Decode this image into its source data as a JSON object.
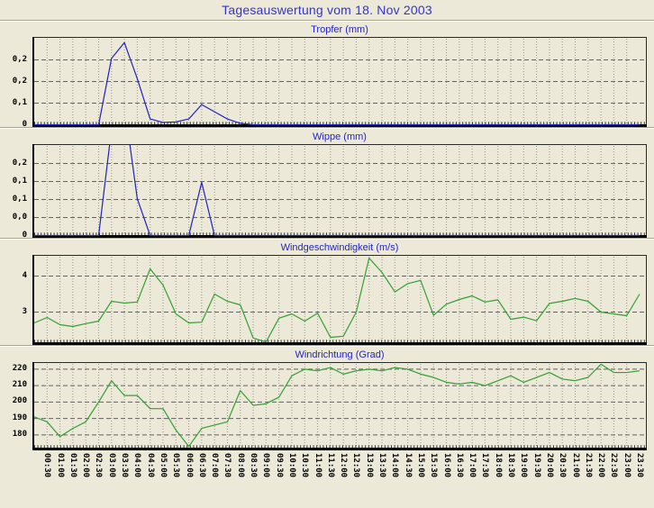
{
  "page": {
    "title": "Tagesauswertung vom 18. Nov 2003"
  },
  "colors": {
    "background": "#ece9d8",
    "page_title": "#3434cc",
    "chart_title": "#2323cc",
    "rain_line": "#2121bd",
    "wind_line": "#32a032",
    "grid_major": "#62625c",
    "grid_minor": "#9a968a",
    "axis": "#000000"
  },
  "x_labels": [
    "00:30",
    "01:00",
    "01:30",
    "02:00",
    "02:30",
    "03:00",
    "03:30",
    "04:00",
    "04:30",
    "05:00",
    "05:30",
    "06:00",
    "06:30",
    "07:00",
    "07:30",
    "08:00",
    "08:30",
    "09:00",
    "09:30",
    "10:00",
    "10:30",
    "11:00",
    "11:30",
    "12:00",
    "12:30",
    "13:00",
    "13:30",
    "14:00",
    "14:30",
    "15:00",
    "15:30",
    "16:00",
    "16:30",
    "17:00",
    "17:30",
    "18:00",
    "18:30",
    "19:00",
    "19:30",
    "20:00",
    "20:30",
    "21:00",
    "21:30",
    "22:00",
    "22:30",
    "23:00",
    "23:30"
  ],
  "chart_data": [
    {
      "type": "line",
      "id": "tropfer",
      "title": "Tropfer (mm)",
      "color": "#2121bd",
      "ymin": 0,
      "ymax": 0.3,
      "grid": true,
      "legend_position": "none",
      "yticks": [
        {
          "v": 0.225,
          "label": "0,2"
        },
        {
          "v": 0.15,
          "label": "0,2"
        },
        {
          "v": 0.075,
          "label": "0,1"
        },
        {
          "v": 0,
          "label": "0"
        }
      ],
      "x_start": "00:00",
      "x_step_minutes": 30,
      "values": [
        0,
        0,
        0,
        0,
        0,
        0,
        0.23,
        0.285,
        0.16,
        0.02,
        0.008,
        0.01,
        0.02,
        0.07,
        0.045,
        0.02,
        0.005,
        0,
        0,
        0,
        0,
        0,
        0,
        0,
        0,
        0,
        0,
        0,
        0,
        0,
        0,
        0,
        0,
        0,
        0,
        0,
        0,
        0,
        0,
        0,
        0,
        0,
        0,
        0,
        0,
        0,
        0,
        0
      ]
    },
    {
      "type": "line",
      "id": "wippe",
      "title": "Wippe (mm)",
      "color": "#2121bd",
      "ymin": 0,
      "ymax": 0.22,
      "grid": true,
      "legend_position": "none",
      "yticks": [
        {
          "v": 0.176,
          "label": "0,2"
        },
        {
          "v": 0.132,
          "label": "0,1"
        },
        {
          "v": 0.088,
          "label": "0,1"
        },
        {
          "v": 0.044,
          "label": "0,0"
        },
        {
          "v": 0,
          "label": "0"
        }
      ],
      "x_start": "00:00",
      "x_step_minutes": 30,
      "values": [
        0,
        0,
        0,
        0,
        0,
        0,
        0.26,
        0.32,
        0.09,
        0,
        0,
        0,
        0,
        0.13,
        0,
        0,
        0,
        0,
        0,
        0,
        0,
        0,
        0,
        0,
        0,
        0,
        0,
        0,
        0,
        0,
        0,
        0,
        0,
        0,
        0,
        0,
        0,
        0,
        0,
        0,
        0,
        0,
        0,
        0,
        0,
        0,
        0,
        0
      ]
    },
    {
      "type": "line",
      "id": "windgeschwindigkeit",
      "title": "Windgeschwindigkeit (m/s)",
      "color": "#32a032",
      "ymin": 2.15,
      "ymax": 4.55,
      "grid": true,
      "legend_position": "none",
      "yticks": [
        {
          "v": 4,
          "label": "4"
        },
        {
          "v": 3,
          "label": "3"
        }
      ],
      "x_start": "00:00",
      "x_step_minutes": 30,
      "values": [
        2.7,
        2.85,
        2.65,
        2.6,
        2.68,
        2.75,
        3.3,
        3.25,
        3.28,
        4.2,
        3.75,
        2.95,
        2.7,
        2.72,
        3.5,
        3.3,
        3.2,
        2.28,
        2.17,
        2.83,
        2.95,
        2.75,
        2.97,
        2.3,
        2.33,
        3.0,
        4.5,
        4.1,
        3.56,
        3.79,
        3.88,
        2.91,
        3.22,
        3.35,
        3.45,
        3.28,
        3.34,
        2.8,
        2.86,
        2.76,
        3.24,
        3.3,
        3.38,
        3.3,
        3.0,
        2.95,
        2.9,
        3.5
      ]
    },
    {
      "type": "line",
      "id": "windrichtung",
      "title": "Windrichtung (Grad)",
      "color": "#32a032",
      "ymin": 172,
      "ymax": 223.5,
      "grid": true,
      "legend_position": "none",
      "yticks": [
        {
          "v": 220,
          "label": "220"
        },
        {
          "v": 210,
          "label": "210"
        },
        {
          "v": 200,
          "label": "200"
        },
        {
          "v": 190,
          "label": "190"
        },
        {
          "v": 180,
          "label": "180"
        }
      ],
      "x_start": "00:00",
      "x_step_minutes": 30,
      "values": [
        191,
        188,
        179,
        184,
        188,
        200,
        213,
        204,
        204,
        196,
        196,
        183,
        173,
        184,
        186,
        188,
        207,
        198,
        199,
        203,
        216,
        220,
        219,
        221,
        217,
        219,
        220,
        219,
        221,
        220,
        217,
        215,
        212,
        211,
        212,
        210,
        213,
        216,
        212,
        215,
        218,
        214,
        213,
        215,
        223,
        218,
        218,
        219
      ]
    }
  ]
}
